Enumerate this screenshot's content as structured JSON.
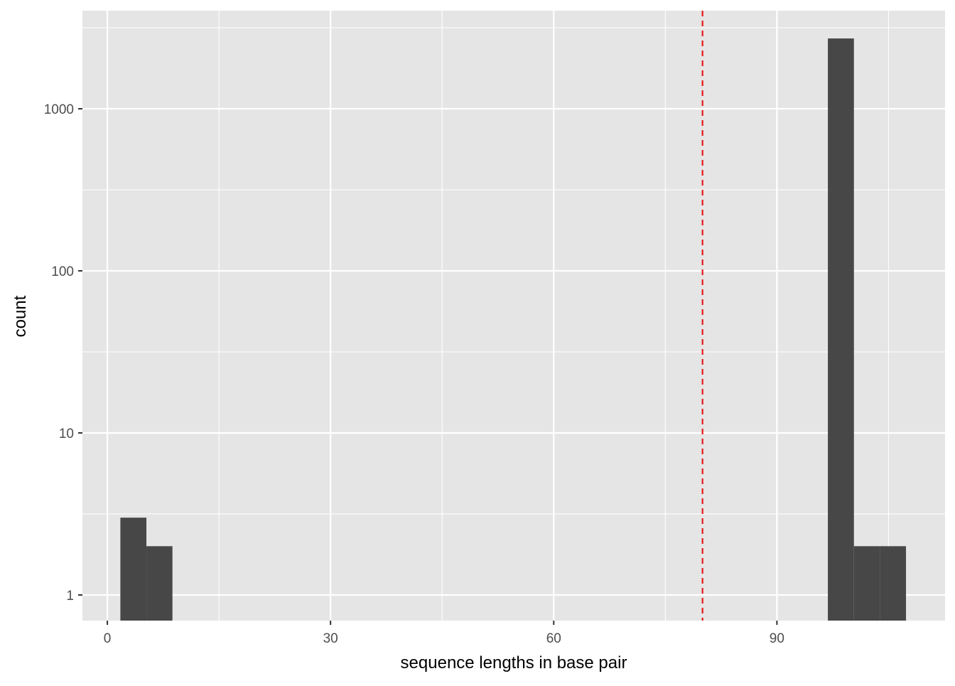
{
  "chart_data": {
    "type": "bar",
    "subtype": "histogram",
    "title": "",
    "xlabel": "sequence lengths in base pair",
    "ylabel": "count",
    "y_scale": "log10",
    "xlim": [
      -3.35,
      112.6
    ],
    "ylim": [
      0.695,
      4030
    ],
    "x_ticks": [
      0,
      30,
      60,
      90
    ],
    "x_tick_labels": [
      "0",
      "30",
      "60",
      "90"
    ],
    "x_minor_ticks": [
      15,
      45,
      75,
      105
    ],
    "y_ticks": [
      1,
      10,
      100,
      1000
    ],
    "y_tick_labels": [
      "1",
      "10",
      "100",
      "1000"
    ],
    "grid": true,
    "bins": [
      {
        "x0": 1.75,
        "x1": 5.25,
        "count": 3
      },
      {
        "x0": 5.25,
        "x1": 8.75,
        "count": 2
      },
      {
        "x0": 96.85,
        "x1": 100.35,
        "count": 2715
      },
      {
        "x0": 100.35,
        "x1": 103.85,
        "count": 2
      },
      {
        "x0": 103.85,
        "x1": 107.35,
        "count": 2
      }
    ],
    "vline": {
      "x": 80,
      "style": "dashed",
      "color": "#E41A1C"
    },
    "colors": {
      "panel": "#E5E5E5",
      "bar": "#474747",
      "grid": "#FFFFFF"
    }
  }
}
